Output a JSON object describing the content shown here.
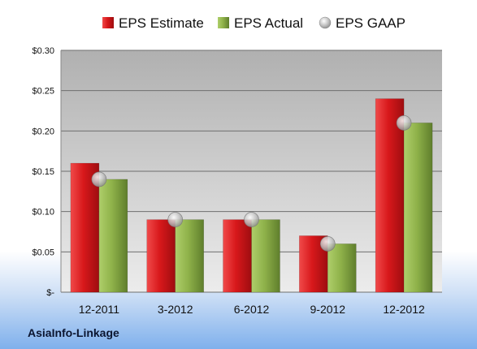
{
  "company": "AsiaInfo-Linkage",
  "chart_data": {
    "type": "bar",
    "categories": [
      "12-2011",
      "3-2012",
      "6-2012",
      "9-2012",
      "12-2012"
    ],
    "series": [
      {
        "name": "EPS Estimate",
        "values": [
          0.16,
          0.09,
          0.09,
          0.07,
          0.24
        ],
        "color": "#d01f22",
        "kind": "bar"
      },
      {
        "name": "EPS Actual",
        "values": [
          0.14,
          0.09,
          0.09,
          0.06,
          0.21
        ],
        "color": "#8fb24a",
        "kind": "bar"
      },
      {
        "name": "EPS GAAP",
        "values": [
          0.14,
          0.09,
          0.09,
          0.06,
          0.21
        ],
        "color": "#b8b8b8",
        "kind": "marker"
      }
    ],
    "y_ticks": [
      {
        "value": 0,
        "label": "$-"
      },
      {
        "value": 0.05,
        "label": "$0.05"
      },
      {
        "value": 0.1,
        "label": "$0.10"
      },
      {
        "value": 0.15,
        "label": "$0.15"
      },
      {
        "value": 0.2,
        "label": "$0.20"
      },
      {
        "value": 0.25,
        "label": "$0.25"
      },
      {
        "value": 0.3,
        "label": "$0.30"
      }
    ],
    "ylim": [
      0,
      0.3
    ],
    "grid": true,
    "legend_position": "top"
  }
}
